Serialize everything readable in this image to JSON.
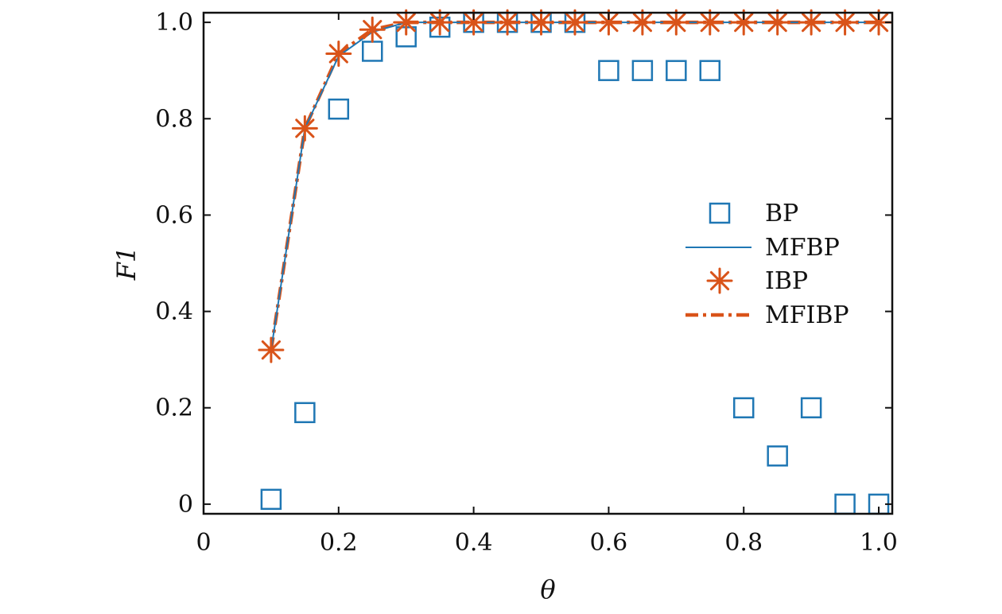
{
  "chart_data": {
    "type": "scatter",
    "xlabel": "θ",
    "ylabel": "F1",
    "xlim": [
      0,
      1.02
    ],
    "ylim": [
      -0.02,
      1.02
    ],
    "xticks": [
      0,
      0.2,
      0.4,
      0.6,
      0.8,
      1.0
    ],
    "xtick_labels": [
      "0",
      "0.2",
      "0.4",
      "0.6",
      "0.8",
      "1.0"
    ],
    "yticks": [
      0,
      0.2,
      0.4,
      0.6,
      0.8,
      1.0
    ],
    "ytick_labels": [
      "0",
      "0.2",
      "0.4",
      "0.6",
      "0.8",
      "1.0"
    ],
    "grid": false,
    "legend_position": "right",
    "x": [
      0.1,
      0.15,
      0.2,
      0.25,
      0.3,
      0.35,
      0.4,
      0.45,
      0.5,
      0.55,
      0.6,
      0.65,
      0.7,
      0.75,
      0.8,
      0.85,
      0.9,
      0.95,
      1.0
    ],
    "series": [
      {
        "name": "BP",
        "style": "square-markers",
        "color": "#1f77b4",
        "values": [
          0.01,
          0.19,
          0.82,
          0.94,
          0.97,
          0.99,
          1.0,
          1.0,
          1.0,
          1.0,
          0.9,
          0.9,
          0.9,
          0.9,
          0.2,
          0.1,
          0.2,
          0.0,
          0.0
        ]
      },
      {
        "name": "MFBP",
        "style": "solid-line",
        "color": "#1f77b4",
        "values": [
          0.32,
          0.78,
          0.93,
          0.98,
          1.0,
          1.0,
          1.0,
          1.0,
          1.0,
          1.0,
          1.0,
          1.0,
          1.0,
          1.0,
          1.0,
          1.0,
          1.0,
          1.0,
          1.0
        ]
      },
      {
        "name": "IBP",
        "style": "star-markers",
        "color": "#d95319",
        "values": [
          0.32,
          0.78,
          0.935,
          0.985,
          1.0,
          1.0,
          1.0,
          1.0,
          1.0,
          1.0,
          1.0,
          1.0,
          1.0,
          1.0,
          1.0,
          1.0,
          1.0,
          1.0,
          1.0
        ]
      },
      {
        "name": "MFIBP",
        "style": "dash-dot-line",
        "color": "#d95319",
        "values": [
          0.32,
          0.78,
          0.935,
          0.985,
          1.0,
          1.0,
          1.0,
          1.0,
          1.0,
          1.0,
          1.0,
          1.0,
          1.0,
          1.0,
          1.0,
          1.0,
          1.0,
          1.0,
          1.0
        ]
      }
    ]
  }
}
